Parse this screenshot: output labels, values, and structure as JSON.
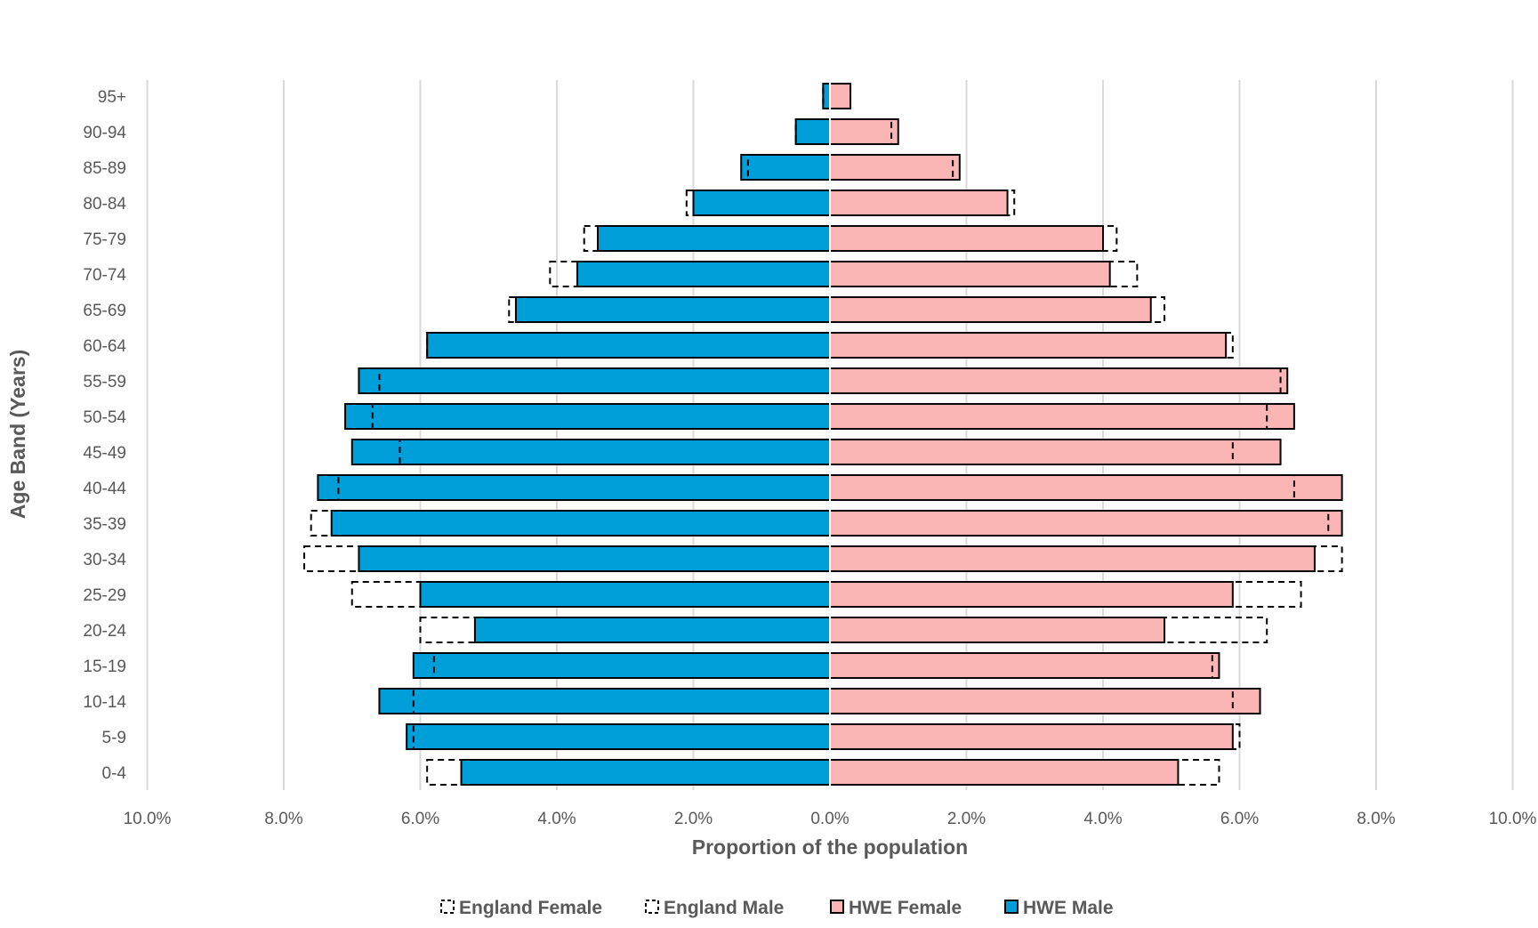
{
  "chart_data": {
    "type": "bar",
    "orientation": "horizontal-population-pyramid",
    "title": "",
    "xlabel": "Proportion of the population",
    "ylabel": "Age Band (Years)",
    "xlim": [
      -10,
      10
    ],
    "x_ticks": [
      -10,
      -8,
      -6,
      -4,
      -2,
      0,
      2,
      4,
      6,
      8,
      10
    ],
    "x_tick_labels": [
      "10.0%",
      "8.0%",
      "6.0%",
      "4.0%",
      "2.0%",
      "0.0%",
      "2.0%",
      "4.0%",
      "6.0%",
      "8.0%",
      "10.0%"
    ],
    "grid": "vertical",
    "legend_position": "bottom",
    "categories": [
      "0-4",
      "5-9",
      "10-14",
      "15-19",
      "20-24",
      "25-29",
      "30-34",
      "35-39",
      "40-44",
      "45-49",
      "50-54",
      "55-59",
      "60-64",
      "65-69",
      "70-74",
      "75-79",
      "80-84",
      "85-89",
      "90-94",
      "95+"
    ],
    "series": [
      {
        "name": "England Female",
        "style": "dashed-outline",
        "side": "right",
        "values": [
          5.7,
          6.0,
          5.9,
          5.6,
          6.4,
          6.9,
          7.5,
          7.3,
          6.8,
          5.9,
          6.4,
          6.6,
          5.9,
          4.9,
          4.5,
          4.2,
          2.7,
          1.8,
          0.9,
          0.3
        ]
      },
      {
        "name": "England Male",
        "style": "dashed-outline",
        "side": "left",
        "values": [
          5.9,
          6.1,
          6.1,
          5.8,
          6.0,
          7.0,
          7.7,
          7.6,
          7.2,
          6.3,
          6.7,
          6.6,
          5.9,
          4.7,
          4.1,
          3.6,
          2.1,
          1.2,
          0.5,
          0.1
        ]
      },
      {
        "name": "HWE Female",
        "color": "#fbb5b5",
        "side": "right",
        "values": [
          5.1,
          5.9,
          6.3,
          5.7,
          4.9,
          5.9,
          7.1,
          7.5,
          7.5,
          6.6,
          6.8,
          6.7,
          5.8,
          4.7,
          4.1,
          4.0,
          2.6,
          1.9,
          1.0,
          0.3
        ]
      },
      {
        "name": "HWE Male",
        "color": "#009fda",
        "side": "left",
        "values": [
          5.4,
          6.2,
          6.6,
          6.1,
          5.2,
          6.0,
          6.9,
          7.3,
          7.5,
          7.0,
          7.1,
          6.9,
          5.9,
          4.6,
          3.7,
          3.4,
          2.0,
          1.3,
          0.5,
          0.1
        ]
      }
    ],
    "legend": [
      "England Female",
      "England Male",
      "HWE Female",
      "HWE Male"
    ]
  }
}
